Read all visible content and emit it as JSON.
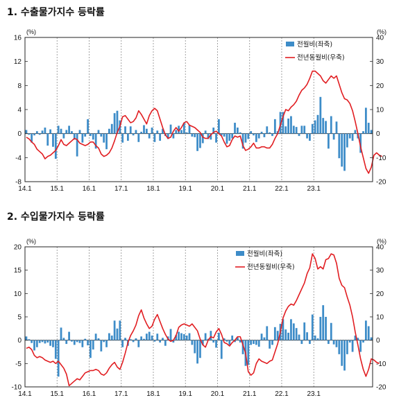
{
  "charts": [
    {
      "heading": "1. 수출물가지수 등락률",
      "chart_data": {
        "type": "bar",
        "left_axis": {
          "unit": "(%)",
          "min": -8,
          "max": 16,
          "ticks": [
            -8,
            -4,
            0,
            4,
            8,
            12,
            16
          ]
        },
        "right_axis": {
          "unit": "(%)",
          "min": -20,
          "max": 40,
          "ticks": [
            -20,
            -10,
            0,
            10,
            20,
            30,
            40
          ]
        },
        "x_ticks": [
          "14.1",
          "15.1",
          "16.1",
          "17.1",
          "18.1",
          "19.1",
          "20.1",
          "21.1",
          "22.1",
          "23.1"
        ],
        "legend_position": "top-right",
        "series": [
          {
            "name": "전월비(좌축)",
            "kind": "bar",
            "axis": "left",
            "color": "#3d8cc8",
            "values": [
              0.6,
              -0.2,
              -1.5,
              -0.3,
              0.4,
              -0.2,
              0.5,
              1.0,
              -2.0,
              0.7,
              -2.2,
              -4.2,
              1.3,
              0.8,
              -0.8,
              0.6,
              1.3,
              0.4,
              -1.0,
              -3.8,
              0.6,
              -1.5,
              -0.5,
              2.4,
              -0.4,
              -1.0,
              -2.5,
              0.6,
              -0.5,
              -1.5,
              -2.6,
              0.8,
              1.6,
              3.4,
              3.8,
              2.2,
              -1.5,
              1.2,
              -1.2,
              1.2,
              -0.3,
              0.6,
              -1.4,
              0.3,
              1.4,
              0.8,
              -0.8,
              1.0,
              -1.4,
              0.5,
              -1.2,
              0.8,
              -0.4,
              -0.9,
              1.5,
              -0.8,
              0.6,
              1.3,
              0.6,
              1.8,
              0.2,
              1.4,
              -0.5,
              -0.6,
              -2.9,
              -2.4,
              -1.6,
              0.5,
              -0.9,
              -1.0,
              1.0,
              -1.5,
              2.4,
              -0.3,
              -0.5,
              -1.7,
              -1.2,
              -0.8,
              1.8,
              1.0,
              0.2,
              -2.5,
              -1.5,
              -0.9,
              0.4,
              -0.3,
              -1.4,
              -0.8,
              0.3,
              -0.6,
              1.2,
              0.2,
              -0.4,
              2.4,
              0.4,
              3.6,
              3.6,
              1.2,
              2.5,
              2.9,
              1.3,
              1.1,
              -0.4,
              1.3,
              1.3,
              -0.8,
              -1.2,
              1.6,
              2.2,
              3.1,
              6.1,
              2.6,
              2.1,
              -2.5,
              2.9,
              -1.0,
              2.0,
              -4.1,
              -5.5,
              -6.2,
              -2.3,
              -0.8,
              -1.2,
              0.6,
              -0.8,
              -3.2,
              0.4,
              4.3,
              1.8,
              0.6
            ]
          },
          {
            "name": "전년동월비(우축)",
            "kind": "line",
            "axis": "right",
            "color": "#e11d21",
            "values": [
              -1.5,
              -2.2,
              -3.5,
              -4.5,
              -6.5,
              -7.5,
              -8.5,
              -10.5,
              -9.5,
              -9.0,
              -8.0,
              -7.0,
              -5.0,
              -2.5,
              -4.5,
              -5.0,
              -4.0,
              -3.0,
              -2.0,
              -2.5,
              -4.0,
              -4.5,
              -5.0,
              -4.5,
              -3.5,
              -3.5,
              -5.0,
              -6.0,
              -8.5,
              -9.5,
              -9.0,
              -8.0,
              -6.0,
              -3.0,
              0.5,
              3.0,
              7.0,
              7.5,
              6.0,
              4.5,
              5.0,
              6.5,
              9.5,
              8.0,
              6.0,
              4.0,
              7.5,
              9.5,
              10.5,
              9.5,
              6.0,
              2.5,
              -0.5,
              -2.0,
              -1.5,
              1.0,
              2.5,
              1.0,
              2.5,
              4.5,
              5.0,
              3.5,
              3.0,
              2.5,
              1.5,
              0.5,
              -1.5,
              -2.0,
              -2.0,
              -0.5,
              0.5,
              1.0,
              0.0,
              -1.0,
              -3.5,
              -5.5,
              -5.0,
              -2.5,
              -1.0,
              -1.5,
              -1.0,
              -5.0,
              -7.0,
              -6.5,
              -5.5,
              -4.0,
              -6.0,
              -6.0,
              -5.5,
              -5.5,
              -6.0,
              -6.0,
              -4.5,
              -2.0,
              0.0,
              3.5,
              7.0,
              10.0,
              9.5,
              11.0,
              12.0,
              13.5,
              16.0,
              18.0,
              19.0,
              20.5,
              23.0,
              26.0,
              26.0,
              25.0,
              24.0,
              22.0,
              21.0,
              22.5,
              24.0,
              23.0,
              24.0,
              20.5,
              17.0,
              14.5,
              14.0,
              12.5,
              9.5,
              5.0,
              0.0,
              -5.5,
              -10.0,
              -14.5,
              -16.5,
              -14.0,
              -9.0,
              -8.0,
              -9.0,
              -9.5
            ]
          }
        ]
      }
    },
    {
      "heading": "2. 수입물가지수 등락률",
      "chart_data": {
        "type": "bar",
        "left_axis": {
          "unit": "(%)",
          "min": -10,
          "max": 20,
          "ticks": [
            -10,
            -5,
            0,
            5,
            10,
            15,
            20
          ]
        },
        "right_axis": {
          "unit": "(%)",
          "min": -20,
          "max": 40,
          "ticks": [
            -20,
            -10,
            0,
            10,
            20,
            30,
            40
          ]
        },
        "x_ticks": [
          "14.1",
          "15.1",
          "16.1",
          "17.1",
          "18.1",
          "19.1",
          "20.1",
          "21.1",
          "22.1",
          "23.1"
        ],
        "legend_position": "top-right",
        "series": [
          {
            "name": "전월비(좌축)",
            "kind": "bar",
            "axis": "left",
            "color": "#3d8cc8",
            "values": [
              0.8,
              0.2,
              -0.6,
              -2.2,
              -1.5,
              -0.6,
              -0.4,
              -0.7,
              -0.5,
              -1.2,
              -1.5,
              -4.0,
              -7.8,
              2.7,
              0.5,
              -0.8,
              1.8,
              -0.3,
              -1.0,
              -0.4,
              -0.6,
              -1.5,
              0.3,
              -1.1,
              -3.8,
              -2.0,
              1.4,
              0.4,
              -2.4,
              -0.4,
              -1.5,
              1.5,
              1.0,
              4.2,
              2.5,
              4.2,
              -1.5,
              0.5,
              -1.2,
              0.2,
              -0.4,
              0.4,
              -1.5,
              0.8,
              0.3,
              1.4,
              1.8,
              1.0,
              -0.3,
              1.4,
              -0.5,
              0.5,
              -1.2,
              0.8,
              2.4,
              -0.5,
              1.1,
              1.8,
              1.5,
              1.3,
              1.0,
              1.5,
              -1.0,
              -2.8,
              -5.0,
              -3.8,
              -1.0,
              1.5,
              0.3,
              2.0,
              -0.5,
              -1.6,
              1.6,
              -4.0,
              0.4,
              -0.3,
              -1.0,
              1.0,
              -0.4,
              0.6,
              -0.5,
              -3.0,
              -5.5,
              -5.3,
              -1.0,
              -0.8,
              -1.0,
              -1.4,
              1.4,
              0.6,
              3.0,
              -1.8,
              -1.0,
              2.8,
              2.0,
              3.5,
              4.5,
              2.3,
              1.6,
              4.5,
              3.6,
              2.6,
              1.2,
              -0.8,
              3.8,
              1.7,
              -0.8,
              5.5,
              1.0,
              0.4,
              5.0,
              7.5,
              5.0,
              -0.8,
              3.7,
              -0.9,
              -1.5,
              -3.0,
              -5.5,
              -6.5,
              -3.0,
              -0.5,
              -2.5,
              1.0,
              0.5,
              -2.5,
              -0.5,
              4.2,
              3.0,
              0.6
            ]
          },
          {
            "name": "전년동월비(우축)",
            "kind": "line",
            "axis": "right",
            "color": "#e11d21",
            "values": [
              -3.5,
              -3.0,
              -4.0,
              -6.5,
              -7.5,
              -7.0,
              -7.5,
              -8.5,
              -9.0,
              -9.5,
              -9.0,
              -10.0,
              -9.0,
              -10.5,
              -12.0,
              -14.5,
              -19.5,
              -18.5,
              -17.5,
              -16.5,
              -17.0,
              -15.5,
              -14.0,
              -13.5,
              -13.0,
              -13.0,
              -12.5,
              -13.0,
              -14.5,
              -15.0,
              -14.0,
              -12.0,
              -10.5,
              -9.5,
              -11.5,
              -12.5,
              -9.5,
              -5.5,
              -1.0,
              2.0,
              4.0,
              6.5,
              10.5,
              13.0,
              9.5,
              7.0,
              5.0,
              6.0,
              9.0,
              11.0,
              8.0,
              5.0,
              2.5,
              0.5,
              -0.5,
              0.0,
              2.0,
              5.5,
              6.5,
              7.0,
              6.5,
              6.0,
              7.0,
              5.5,
              4.0,
              0.5,
              -2.0,
              -3.0,
              0.0,
              1.5,
              1.0,
              3.5,
              5.0,
              2.5,
              -1.0,
              -1.5,
              -2.5,
              -1.0,
              0.0,
              1.5,
              1.5,
              -2.0,
              -5.5,
              -13.5,
              -15.0,
              -14.0,
              -10.0,
              -8.0,
              -9.0,
              -9.5,
              -10.0,
              -9.0,
              -8.5,
              -5.0,
              -1.5,
              3.5,
              9.5,
              12.5,
              14.5,
              15.5,
              15.0,
              17.0,
              19.5,
              22.0,
              24.5,
              28.5,
              31.0,
              37.0,
              35.0,
              30.5,
              31.5,
              30.5,
              34.5,
              35.0,
              37.0,
              36.5,
              33.0,
              26.5,
              23.5,
              22.5,
              18.5,
              15.0,
              10.0,
              3.5,
              -2.0,
              -8.0,
              -12.5,
              -15.5,
              -12.5,
              -8.0,
              -8.5,
              -9.5,
              -10.0
            ]
          }
        ]
      }
    }
  ]
}
